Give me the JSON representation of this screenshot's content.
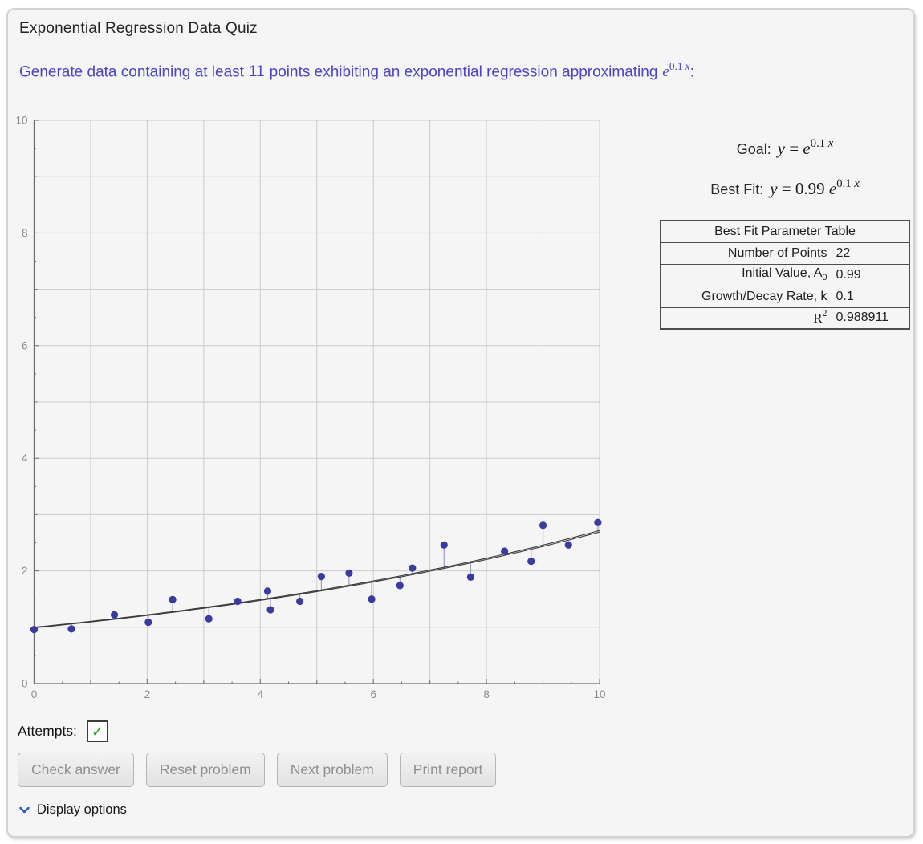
{
  "title": "Exponential Regression Data Quiz",
  "prompt": {
    "part1": "Generate data containing at least",
    "points_count": "11",
    "part2": "points exhibiting an exponential regression approximating",
    "math_base": "e",
    "math_exp_num": "0.1 ",
    "math_exp_var": "x",
    "suffix": ":"
  },
  "chart_data": {
    "type": "scatter",
    "title": "",
    "xlabel": "",
    "ylabel": "",
    "xlim": [
      0,
      10
    ],
    "ylim": [
      0,
      10
    ],
    "xticks_labeled": [
      0,
      2,
      4,
      6,
      8,
      10
    ],
    "yticks_labeled": [
      0,
      2,
      4,
      6,
      8,
      10
    ],
    "grid": true,
    "points": [
      [
        0.0,
        0.96
      ],
      [
        0.66,
        0.97
      ],
      [
        1.42,
        1.22
      ],
      [
        2.02,
        1.09
      ],
      [
        2.45,
        1.49
      ],
      [
        3.09,
        1.15
      ],
      [
        3.6,
        1.46
      ],
      [
        4.13,
        1.64
      ],
      [
        4.18,
        1.31
      ],
      [
        4.7,
        1.46
      ],
      [
        5.08,
        1.9
      ],
      [
        5.57,
        1.96
      ],
      [
        5.97,
        1.5
      ],
      [
        6.47,
        1.74
      ],
      [
        6.69,
        2.05
      ],
      [
        7.25,
        2.46
      ],
      [
        7.72,
        1.89
      ],
      [
        8.32,
        2.35
      ],
      [
        8.79,
        2.17
      ],
      [
        9.0,
        2.81
      ],
      [
        9.45,
        2.46
      ],
      [
        9.97,
        2.86
      ]
    ],
    "goal": {
      "A0": 1.0,
      "k": 0.1
    },
    "fit": {
      "A0": 0.99,
      "k": 0.1
    },
    "colors": {
      "point": "#3b3b9f",
      "residual": "#9a9ad2",
      "fit_line": "#3a3a3a",
      "grid": "#cbcbcb",
      "axis": "#6b6b6b",
      "tick_label": "#8a8a8a"
    }
  },
  "goal": {
    "label": "Goal:",
    "lhs": "y",
    "rel": "=",
    "base": "e",
    "exp_num": "0.1 ",
    "exp_var": "x"
  },
  "bestfit": {
    "label": "Best Fit:",
    "lhs": "y",
    "rel": "=",
    "coef": "0.99 ",
    "base": "e",
    "exp_num": "0.1 ",
    "exp_var": "x"
  },
  "table": {
    "header": "Best Fit Parameter Table",
    "rows": [
      {
        "label": "Number of Points",
        "value": "22"
      },
      {
        "label_pre": "Initial Value, A",
        "label_sub": "0",
        "value": "0.99"
      },
      {
        "label": "Growth/Decay Rate, k",
        "value": "0.1"
      },
      {
        "label_base": "R",
        "label_sup": "2",
        "value": "0.988911"
      }
    ]
  },
  "attempts": {
    "label": "Attempts:",
    "check": "✓"
  },
  "buttons": [
    {
      "label": "Check answer"
    },
    {
      "label": "Reset problem"
    },
    {
      "label": "Next problem"
    },
    {
      "label": "Print report"
    }
  ],
  "display_options": {
    "label": "Display options"
  },
  "colors": {
    "prompt_text": "#4b45c6",
    "chevron": "#2b59b5",
    "check_green": "#2da32d",
    "card_bg": "#f5f5f5"
  }
}
